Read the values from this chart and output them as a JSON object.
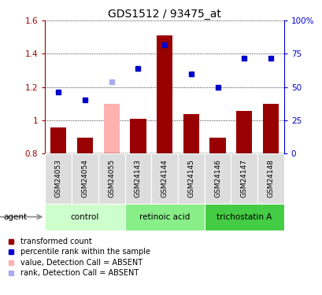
{
  "title": "GDS1512 / 93475_at",
  "samples": [
    "GSM24053",
    "GSM24054",
    "GSM24055",
    "GSM24143",
    "GSM24144",
    "GSM24145",
    "GSM24146",
    "GSM24147",
    "GSM24148"
  ],
  "bar_values": [
    0.955,
    0.895,
    1.1,
    1.01,
    1.51,
    1.035,
    0.895,
    1.055,
    1.1
  ],
  "bar_absent": [
    false,
    false,
    true,
    false,
    false,
    false,
    false,
    false,
    false
  ],
  "rank_values": [
    46,
    40,
    54,
    64,
    82,
    60,
    50,
    72,
    72
  ],
  "rank_absent": [
    false,
    false,
    true,
    false,
    false,
    false,
    false,
    false,
    false
  ],
  "bar_color": "#990000",
  "bar_absent_color": "#FFB0B0",
  "rank_color": "#0000CC",
  "rank_absent_color": "#AAAAEE",
  "ylim_left": [
    0.8,
    1.6
  ],
  "ylim_right": [
    0,
    100
  ],
  "yticks_left": [
    0.8,
    1.0,
    1.2,
    1.4,
    1.6
  ],
  "ytick_labels_left": [
    "0.8",
    "1",
    "1.2",
    "1.4",
    "1.6"
  ],
  "ytick_labels_right": [
    "0",
    "25",
    "50",
    "75",
    "100%"
  ],
  "yticks_right": [
    0,
    25,
    50,
    75,
    100
  ],
  "groups": [
    {
      "label": "control",
      "start": 0,
      "end": 3,
      "color": "#CCFFCC"
    },
    {
      "label": "retinoic acid",
      "start": 3,
      "end": 6,
      "color": "#88EE88"
    },
    {
      "label": "trichostatin A",
      "start": 6,
      "end": 9,
      "color": "#44CC44"
    }
  ],
  "legend_items": [
    {
      "label": "transformed count",
      "color": "#990000"
    },
    {
      "label": "percentile rank within the sample",
      "color": "#0000CC"
    },
    {
      "label": "value, Detection Call = ABSENT",
      "color": "#FFB0B0"
    },
    {
      "label": "rank, Detection Call = ABSENT",
      "color": "#AAAAEE"
    }
  ],
  "background_color": "#FFFFFF",
  "title_fontsize": 10,
  "tick_fontsize": 7.5,
  "sample_fontsize": 6.5,
  "group_fontsize": 7.5,
  "legend_fontsize": 7,
  "agent_label": "agent"
}
